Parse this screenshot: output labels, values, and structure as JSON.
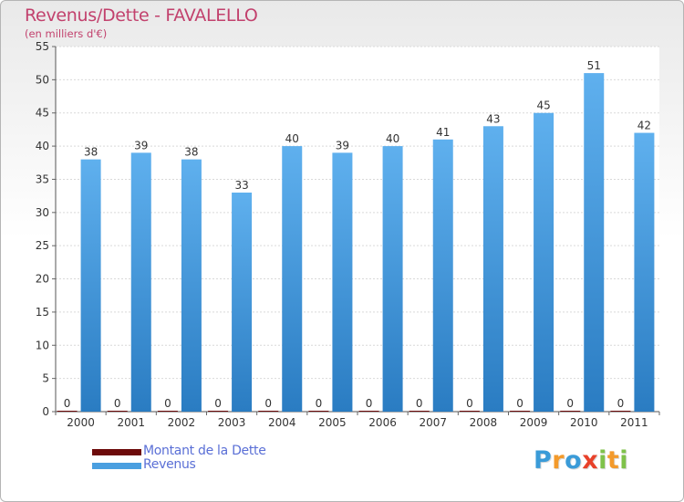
{
  "title": "Revenus/Dette - FAVALELLO",
  "subtitle": "(en milliers d'€)",
  "logo_letters": [
    "P",
    "r",
    "o",
    "x",
    "i",
    "t",
    "i"
  ],
  "logo_colors": [
    "#3a9bd8",
    "#f39a2b",
    "#3a9bd8",
    "#e8412a",
    "#7fc24a",
    "#f39a2b",
    "#7fc24a"
  ],
  "chart_data": {
    "type": "bar",
    "categories": [
      "2000",
      "2001",
      "2002",
      "2003",
      "2004",
      "2005",
      "2006",
      "2007",
      "2008",
      "2009",
      "2010",
      "2011"
    ],
    "series": [
      {
        "name": "Montant de la Dette",
        "color": "#6d0b0b",
        "values": [
          0,
          0,
          0,
          0,
          0,
          0,
          0,
          0,
          0,
          0,
          0,
          0
        ]
      },
      {
        "name": "Revenus",
        "color": "#4a9fe0",
        "values": [
          38,
          39,
          38,
          33,
          40,
          39,
          40,
          41,
          43,
          45,
          51,
          42
        ]
      }
    ],
    "ylim": [
      0,
      55
    ],
    "yticks": [
      0,
      5,
      10,
      15,
      20,
      25,
      30,
      35,
      40,
      45,
      50,
      55
    ],
    "grid": true,
    "legend_position": "bottom-left"
  }
}
